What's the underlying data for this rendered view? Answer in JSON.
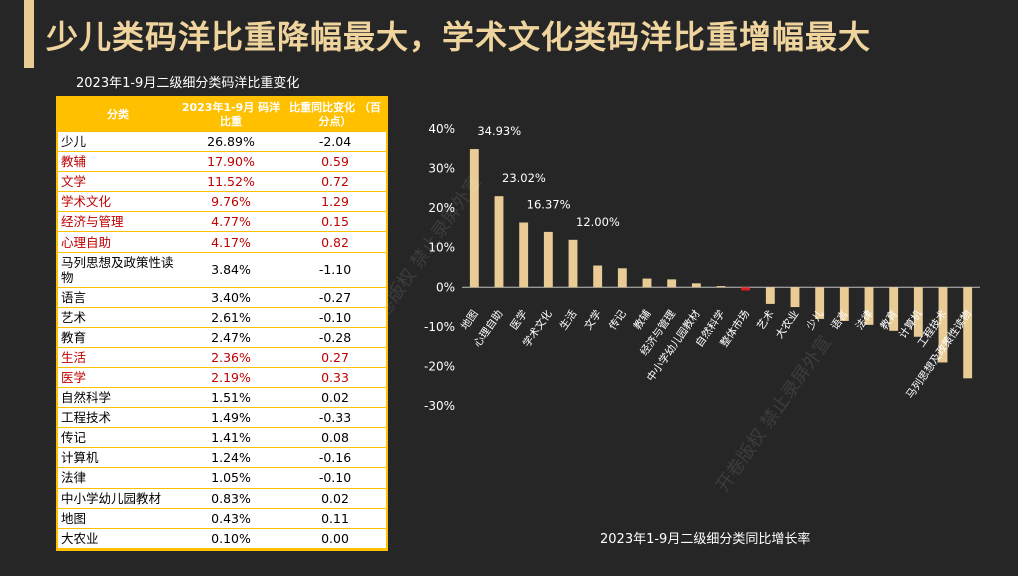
{
  "slide_title": "少儿类码洋比重降幅最大，学术文化类码洋比重增幅最大",
  "table": {
    "title": "2023年1-9月二级细分类码洋比重变化",
    "headers": [
      "分类",
      "2023年1-9月 码洋比重",
      "比重同比变化 （百分点）"
    ],
    "rows": [
      {
        "cat": "少儿",
        "share": "26.89%",
        "change": "-2.04",
        "highlight": false
      },
      {
        "cat": "教辅",
        "share": "17.90%",
        "change": "0.59",
        "highlight": true
      },
      {
        "cat": "文学",
        "share": "11.52%",
        "change": "0.72",
        "highlight": true
      },
      {
        "cat": "学术文化",
        "share": "9.76%",
        "change": "1.29",
        "highlight": true
      },
      {
        "cat": "经济与管理",
        "share": "4.77%",
        "change": "0.15",
        "highlight": true
      },
      {
        "cat": "心理自助",
        "share": "4.17%",
        "change": "0.82",
        "highlight": true
      },
      {
        "cat": "马列思想及政策性读物",
        "share": "3.84%",
        "change": "-1.10",
        "highlight": false
      },
      {
        "cat": "语言",
        "share": "3.40%",
        "change": "-0.27",
        "highlight": false
      },
      {
        "cat": "艺术",
        "share": "2.61%",
        "change": "-0.10",
        "highlight": false
      },
      {
        "cat": "教育",
        "share": "2.47%",
        "change": "-0.28",
        "highlight": false
      },
      {
        "cat": "生活",
        "share": "2.36%",
        "change": "0.27",
        "highlight": true
      },
      {
        "cat": "医学",
        "share": "2.19%",
        "change": "0.33",
        "highlight": true
      },
      {
        "cat": "自然科学",
        "share": "1.51%",
        "change": "0.02",
        "highlight": false
      },
      {
        "cat": "工程技术",
        "share": "1.49%",
        "change": "-0.33",
        "highlight": false
      },
      {
        "cat": "传记",
        "share": "1.41%",
        "change": "0.08",
        "highlight": false
      },
      {
        "cat": "计算机",
        "share": "1.24%",
        "change": "-0.16",
        "highlight": false
      },
      {
        "cat": "法律",
        "share": "1.05%",
        "change": "-0.10",
        "highlight": false
      },
      {
        "cat": "中小学幼儿园教材",
        "share": "0.83%",
        "change": "0.02",
        "highlight": false
      },
      {
        "cat": "地图",
        "share": "0.43%",
        "change": "0.11",
        "highlight": false
      },
      {
        "cat": "大农业",
        "share": "0.10%",
        "change": "0.00",
        "highlight": false
      }
    ]
  },
  "chart_data": {
    "type": "bar",
    "title": "2023年1-9月二级细分类同比增长率",
    "categories": [
      "地图",
      "心理自助",
      "医学",
      "学术文化",
      "生活",
      "文学",
      "传记",
      "教辅",
      "经济与管理",
      "中小学幼儿园教材",
      "自然科学",
      "整体市场",
      "艺术",
      "大农业",
      "少儿",
      "语言",
      "法律",
      "教育",
      "计算机",
      "工程技术",
      "马列思想及政策性读物"
    ],
    "values": [
      34.93,
      23.02,
      16.37,
      14.0,
      12.0,
      5.5,
      4.8,
      2.2,
      2.0,
      1.0,
      0.3,
      -0.8,
      -4.2,
      -5.0,
      -8.0,
      -8.5,
      -9.5,
      -11.0,
      -12.5,
      -19.0,
      -23.0
    ],
    "data_labels": {
      "0": "34.93%",
      "1": "23.02%",
      "2": "16.37%",
      "4": "12.00%"
    },
    "highlight_category": "整体市场",
    "yticks": [
      "40%",
      "30%",
      "20%",
      "10%",
      "0%",
      "-10%",
      "-20%",
      "-30%"
    ],
    "ylim": [
      -30,
      40
    ],
    "colors": {
      "bar": "#e9cc95",
      "highlight": "#e0201f",
      "accent": "#f0d49e",
      "table_header": "#ffc000",
      "table_red": "#c00000"
    }
  },
  "watermarks": [
    "开卷版权 禁止录屏外宣",
    "开卷版权 禁止录屏外宣"
  ]
}
